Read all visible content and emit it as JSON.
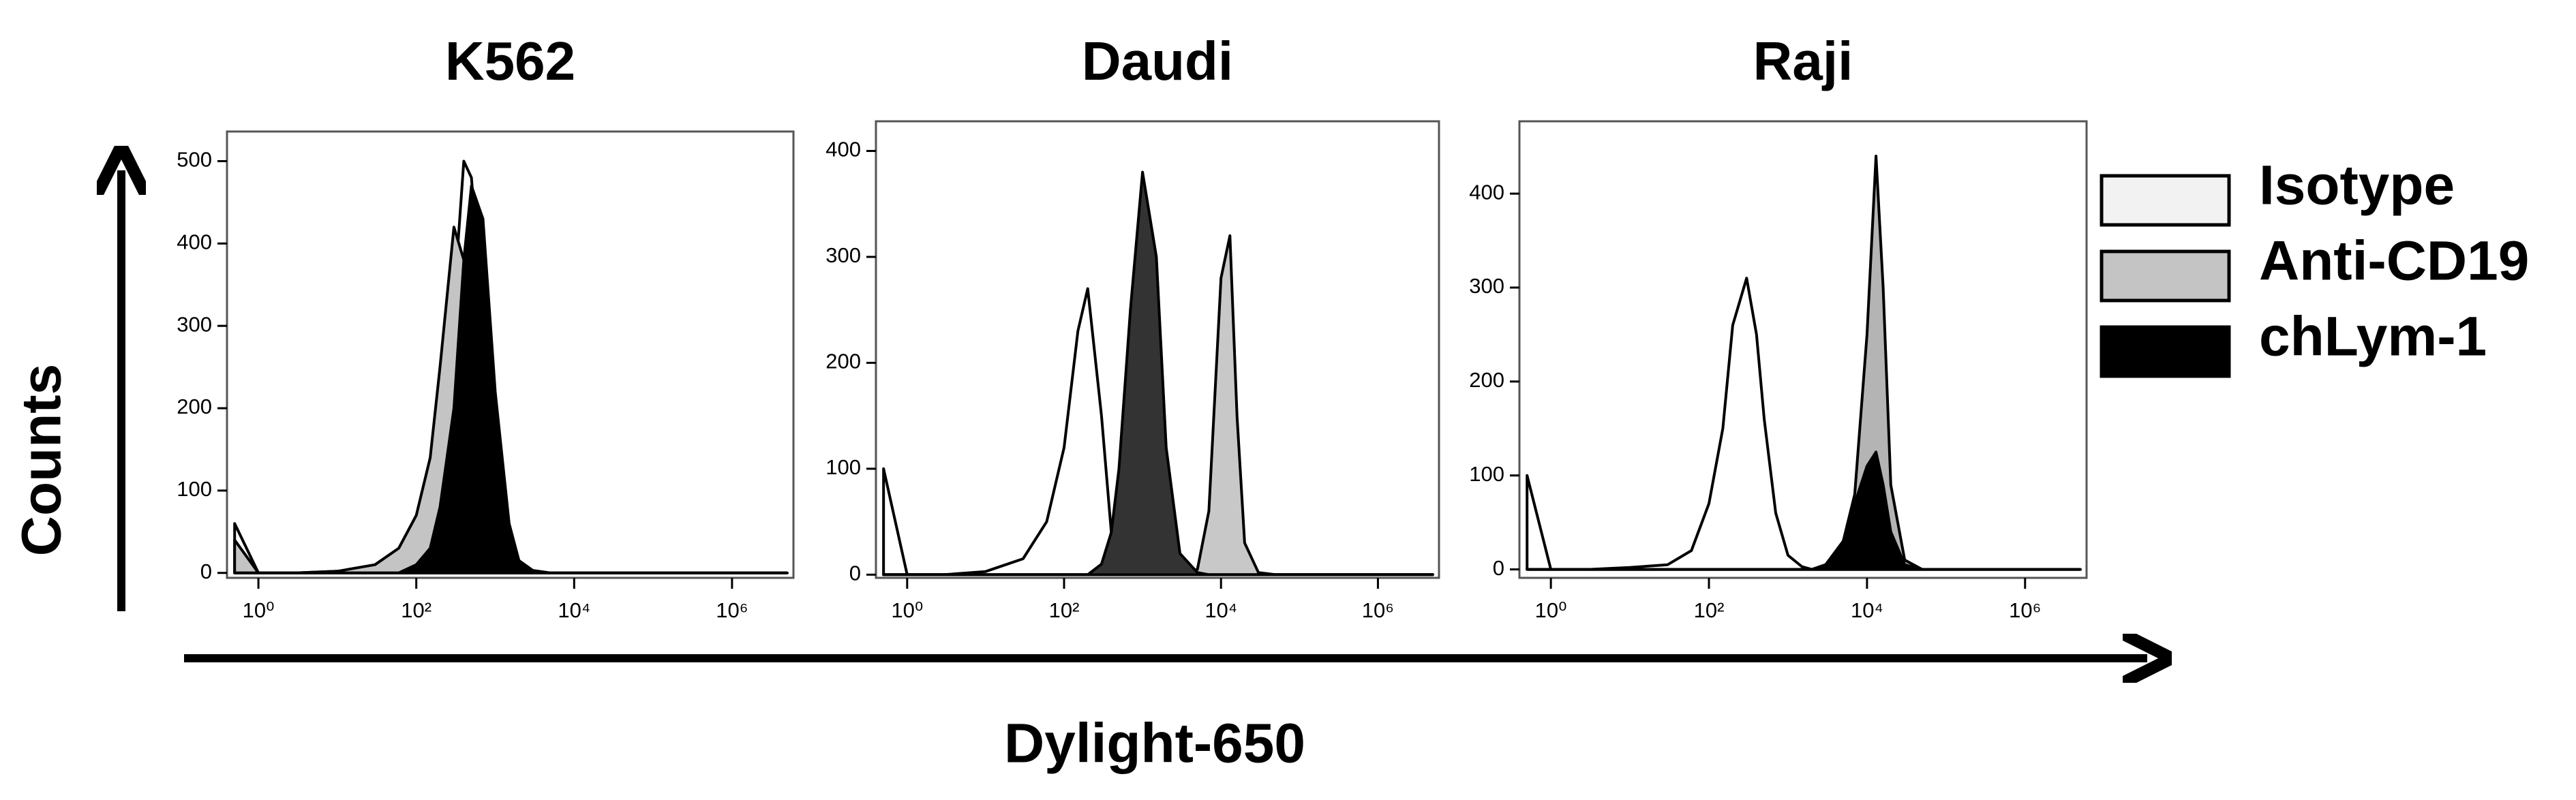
{
  "figure": {
    "ylabel": "Counts",
    "xlabel": "Dylight-650"
  },
  "chart_data": [
    {
      "type": "area",
      "title": "K562",
      "xscale": "log",
      "x": [
        0.5,
        1,
        3,
        10,
        30,
        60,
        100,
        150,
        200,
        300,
        400,
        500,
        700,
        1000,
        1500,
        2000,
        3000,
        5000,
        7000,
        10000,
        13000,
        16000,
        20000,
        30000,
        50000,
        100000,
        1000000,
        5000000
      ],
      "series": [
        {
          "name": "Isotype",
          "color": "#ffffff",
          "values": [
            60,
            0,
            0,
            2,
            8,
            20,
            50,
            100,
            180,
            330,
            500,
            480,
            300,
            120,
            30,
            8,
            2,
            0,
            0,
            0,
            0,
            0,
            0,
            0,
            0,
            0,
            0,
            0
          ]
        },
        {
          "name": "Anti-CD19",
          "color": "#c4c4c4",
          "values": [
            40,
            0,
            0,
            2,
            10,
            30,
            70,
            140,
            250,
            420,
            380,
            350,
            250,
            100,
            25,
            6,
            1,
            0,
            0,
            0,
            0,
            0,
            0,
            0,
            0,
            0,
            0,
            0
          ]
        },
        {
          "name": "chLym-1",
          "color": "#000000",
          "values": [
            0,
            0,
            0,
            0,
            0,
            0,
            10,
            30,
            80,
            200,
            380,
            470,
            430,
            220,
            60,
            15,
            3,
            0,
            0,
            0,
            0,
            0,
            0,
            0,
            0,
            0,
            0,
            0
          ]
        }
      ],
      "xlim": [
        0.4,
        6000000
      ],
      "xticks": [
        {
          "value": 1,
          "label": "10⁰"
        },
        {
          "value": 100,
          "label": "10²"
        },
        {
          "value": 10000,
          "label": "10⁴"
        },
        {
          "value": 1000000,
          "label": "10⁶"
        }
      ],
      "ylim": [
        -6,
        536
      ],
      "yticks": [
        0,
        100,
        200,
        300,
        400,
        500
      ]
    },
    {
      "type": "area",
      "title": "Daudi",
      "xscale": "log",
      "x": [
        0.5,
        1,
        3,
        10,
        30,
        60,
        100,
        150,
        200,
        300,
        400,
        500,
        700,
        1000,
        1500,
        2000,
        3000,
        5000,
        7000,
        10000,
        13000,
        16000,
        20000,
        30000,
        50000,
        100000,
        1000000,
        5000000
      ],
      "series": [
        {
          "name": "Isotype",
          "color": "#ffffff",
          "values": [
            100,
            0,
            0,
            3,
            15,
            50,
            120,
            230,
            270,
            150,
            40,
            10,
            2,
            0,
            0,
            0,
            0,
            0,
            0,
            0,
            0,
            0,
            0,
            0,
            0,
            0,
            0,
            0
          ]
        },
        {
          "name": "Anti-CD19",
          "color": "#c8c8c8",
          "values": [
            0,
            0,
            0,
            0,
            0,
            0,
            0,
            0,
            0,
            0,
            0,
            0,
            0,
            0,
            0,
            0,
            0,
            5,
            60,
            280,
            320,
            150,
            30,
            2,
            0,
            0,
            0,
            0
          ]
        },
        {
          "name": "chLym-1",
          "color": "#333333",
          "values": [
            0,
            0,
            0,
            0,
            0,
            0,
            0,
            0,
            0,
            10,
            40,
            100,
            250,
            380,
            300,
            120,
            20,
            2,
            0,
            0,
            0,
            0,
            0,
            0,
            0,
            0,
            0,
            0
          ]
        }
      ],
      "xlim": [
        0.4,
        6000000
      ],
      "xticks": [
        {
          "value": 1,
          "label": "10⁰"
        },
        {
          "value": 100,
          "label": "10²"
        },
        {
          "value": 10000,
          "label": "10⁴"
        },
        {
          "value": 1000000,
          "label": "10⁶"
        }
      ],
      "ylim": [
        -3,
        428
      ],
      "yticks": [
        0,
        100,
        200,
        300,
        400
      ]
    },
    {
      "type": "area",
      "title": "Raji",
      "xscale": "log",
      "x": [
        0.5,
        1,
        3,
        10,
        30,
        60,
        100,
        150,
        200,
        300,
        400,
        500,
        700,
        1000,
        1500,
        2000,
        3000,
        5000,
        7000,
        10000,
        13000,
        16000,
        20000,
        30000,
        50000,
        100000,
        1000000,
        5000000
      ],
      "series": [
        {
          "name": "Isotype",
          "color": "#ffffff",
          "values": [
            100,
            0,
            0,
            2,
            5,
            20,
            70,
            150,
            260,
            310,
            250,
            160,
            60,
            15,
            3,
            0,
            0,
            0,
            0,
            0,
            0,
            0,
            0,
            0,
            0,
            0,
            0,
            0
          ]
        },
        {
          "name": "Anti-CD19",
          "color": "#b4b4b4",
          "values": [
            0,
            0,
            0,
            0,
            0,
            0,
            0,
            0,
            0,
            0,
            0,
            0,
            0,
            0,
            0,
            0,
            5,
            30,
            80,
            250,
            440,
            300,
            90,
            10,
            0,
            0,
            0,
            0
          ]
        },
        {
          "name": "chLym-1",
          "color": "#000000",
          "values": [
            0,
            0,
            0,
            0,
            0,
            0,
            0,
            0,
            0,
            0,
            0,
            0,
            0,
            0,
            0,
            0,
            5,
            30,
            70,
            110,
            125,
            90,
            40,
            5,
            0,
            0,
            0,
            0
          ]
        }
      ],
      "xlim": [
        0.4,
        6000000
      ],
      "xticks": [
        {
          "value": 1,
          "label": "10⁰"
        },
        {
          "value": 100,
          "label": "10²"
        },
        {
          "value": 10000,
          "label": "10⁴"
        },
        {
          "value": 1000000,
          "label": "10⁶"
        }
      ],
      "ylim": [
        -9,
        477
      ],
      "yticks": [
        0,
        100,
        200,
        300,
        400
      ]
    }
  ]
}
